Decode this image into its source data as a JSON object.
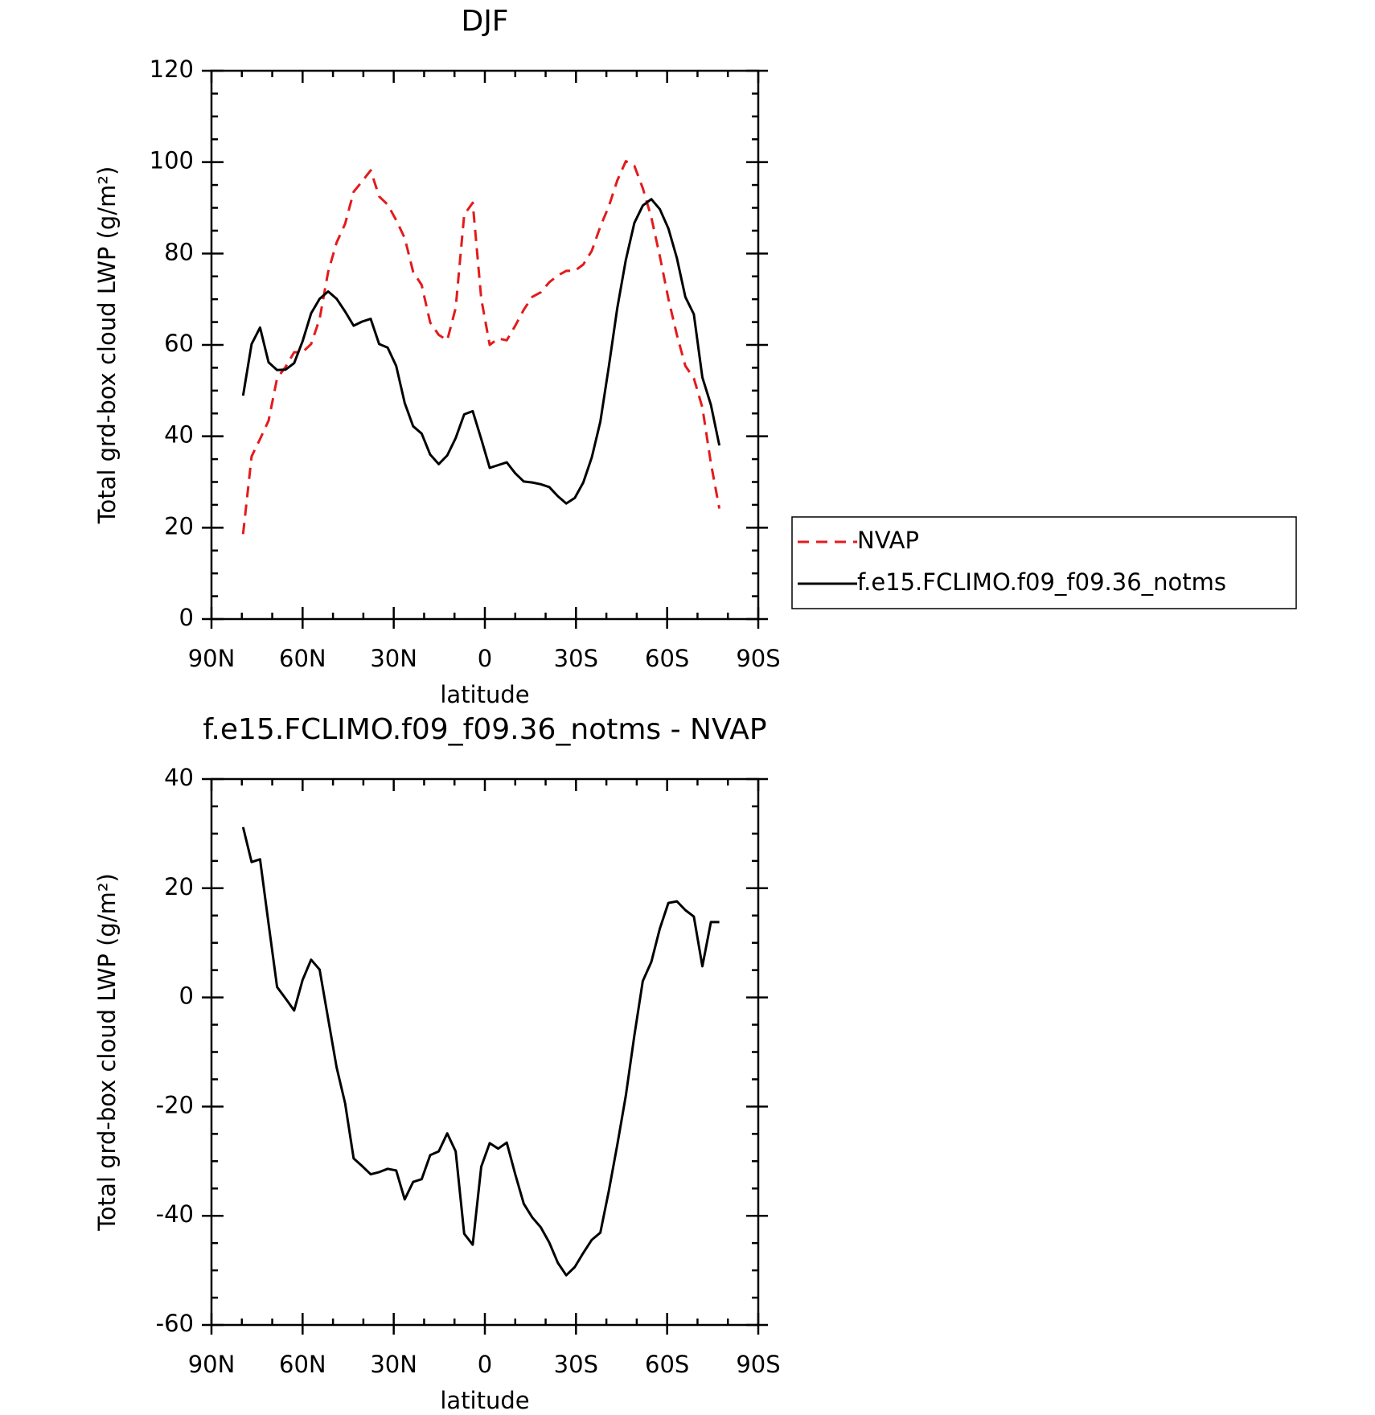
{
  "chart_data": [
    {
      "type": "line",
      "title": "DJF",
      "xlabel": "latitude",
      "ylabel": "Total grd-box cloud LWP (g/m²)",
      "x": [
        79.6,
        76.8,
        74.0,
        71.2,
        68.4,
        65.6,
        62.8,
        60.0,
        57.2,
        54.4,
        51.6,
        48.8,
        46.0,
        43.2,
        40.4,
        37.6,
        34.8,
        32.0,
        29.2,
        26.4,
        23.6,
        20.8,
        18.0,
        15.2,
        12.4,
        9.6,
        6.8,
        4.0,
        1.2,
        -1.6,
        -4.4,
        -7.2,
        -10.0,
        -12.8,
        -15.6,
        -18.4,
        -21.2,
        -24.0,
        -26.8,
        -29.6,
        -32.4,
        -35.2,
        -38.0,
        -40.8,
        -43.6,
        -46.4,
        -49.2,
        -52.0,
        -54.8,
        -57.6,
        -60.4,
        -63.2,
        -66.0,
        -68.8,
        -71.6,
        -74.4,
        -77.2
      ],
      "series": [
        {
          "name": "NVAP",
          "color": "#e41a1c",
          "dashed": true,
          "values": [
            18.6,
            35.6,
            39.4,
            43.4,
            52.7,
            55.2,
            58.4,
            58.4,
            60.2,
            65.7,
            76.0,
            82.4,
            86.5,
            93.5,
            95.8,
            98.2,
            92.5,
            90.7,
            87.3,
            83.4,
            76.0,
            73.1,
            64.9,
            62.2,
            61.0,
            68.1,
            88.5,
            91.1,
            70.1,
            60.0,
            61.4,
            61.0,
            64.2,
            67.7,
            70.5,
            71.5,
            73.7,
            75.2,
            76.2,
            76.2,
            77.6,
            80.6,
            85.9,
            90.3,
            96.0,
            100.2,
            99.2,
            94.3,
            87.9,
            79.4,
            70.1,
            62.2,
            55.4,
            52.7,
            46.3,
            34.1,
            24.2
          ]
        },
        {
          "name": "f.e15.FCLIMO.f09_f09.36_notms",
          "color": "#000000",
          "dashed": false,
          "values": [
            48.9,
            60.2,
            63.8,
            56.2,
            54.5,
            54.6,
            56.0,
            60.8,
            66.9,
            70.1,
            71.7,
            70.1,
            67.3,
            64.2,
            65.1,
            65.7,
            60.2,
            59.4,
            55.4,
            47.3,
            42.2,
            40.6,
            36.0,
            33.9,
            35.8,
            39.6,
            44.8,
            45.5,
            39.4,
            33.1,
            33.7,
            34.3,
            31.9,
            30.1,
            29.9,
            29.5,
            28.9,
            26.9,
            25.3,
            26.5,
            29.9,
            35.4,
            43.2,
            55.2,
            68.1,
            78.6,
            86.7,
            90.5,
            91.9,
            89.7,
            85.5,
            79.0,
            70.5,
            66.7,
            52.9,
            46.9,
            38.0
          ]
        }
      ],
      "xlim": [
        90,
        -90
      ],
      "xticks": [
        {
          "value": 90,
          "label": "90N"
        },
        {
          "value": 60,
          "label": "60N"
        },
        {
          "value": 30,
          "label": "30N"
        },
        0,
        {
          "value": -30,
          "label": "30S"
        },
        {
          "value": -60,
          "label": "60S"
        },
        {
          "value": -90,
          "label": "90S"
        }
      ],
      "ylim": [
        0,
        120
      ],
      "yticks": [
        0,
        20,
        40,
        60,
        80,
        100,
        120
      ],
      "legend": "outside-right"
    },
    {
      "type": "line",
      "title": "f.e15.FCLIMO.f09_f09.36_notms - NVAP",
      "xlabel": "latitude",
      "ylabel": "Total grd-box cloud LWP (g/m²)",
      "x": [
        79.6,
        76.8,
        74.0,
        71.2,
        68.4,
        65.6,
        62.8,
        60.0,
        57.2,
        54.4,
        51.6,
        48.8,
        46.0,
        43.2,
        40.4,
        37.6,
        34.8,
        32.0,
        29.2,
        26.4,
        23.6,
        20.8,
        18.0,
        15.2,
        12.4,
        9.6,
        6.8,
        4.0,
        1.2,
        -1.6,
        -4.4,
        -7.2,
        -10.0,
        -12.8,
        -15.6,
        -18.4,
        -21.2,
        -24.0,
        -26.8,
        -29.6,
        -32.4,
        -35.2,
        -38.0,
        -40.8,
        -43.6,
        -46.4,
        -49.2,
        -52.0,
        -54.8,
        -57.6,
        -60.4,
        -63.2,
        -66.0,
        -68.8,
        -71.6,
        -74.4,
        -77.2
      ],
      "series": [
        {
          "color": "#000000",
          "dashed": false,
          "values": [
            31.2,
            24.8,
            25.3,
            13.5,
            1.9,
            -0.2,
            -2.4,
            3.2,
            6.9,
            5.1,
            -3.9,
            -12.8,
            -19.4,
            -29.5,
            -30.9,
            -32.4,
            -32.0,
            -31.4,
            -31.7,
            -37.0,
            -33.8,
            -33.3,
            -28.9,
            -28.2,
            -24.9,
            -28.2,
            -43.3,
            -45.3,
            -31.0,
            -26.7,
            -27.7,
            -26.6,
            -32.4,
            -37.8,
            -40.3,
            -42.1,
            -44.9,
            -48.6,
            -50.9,
            -49.4,
            -46.8,
            -44.4,
            -43.1,
            -35.5,
            -27.0,
            -18.0,
            -7.0,
            3.0,
            6.5,
            12.6,
            17.3,
            17.6,
            16.0,
            14.8,
            5.7,
            13.8,
            13.8
          ]
        }
      ],
      "xlim": [
        90,
        -90
      ],
      "xticks": [
        {
          "value": 90,
          "label": "90N"
        },
        {
          "value": 60,
          "label": "60N"
        },
        {
          "value": 30,
          "label": "30N"
        },
        0,
        {
          "value": -30,
          "label": "30S"
        },
        {
          "value": -60,
          "label": "60S"
        },
        {
          "value": -90,
          "label": "90S"
        }
      ],
      "ylim": [
        -60,
        40
      ],
      "yticks": [
        -60,
        -40,
        -20,
        0,
        20,
        40
      ]
    }
  ]
}
